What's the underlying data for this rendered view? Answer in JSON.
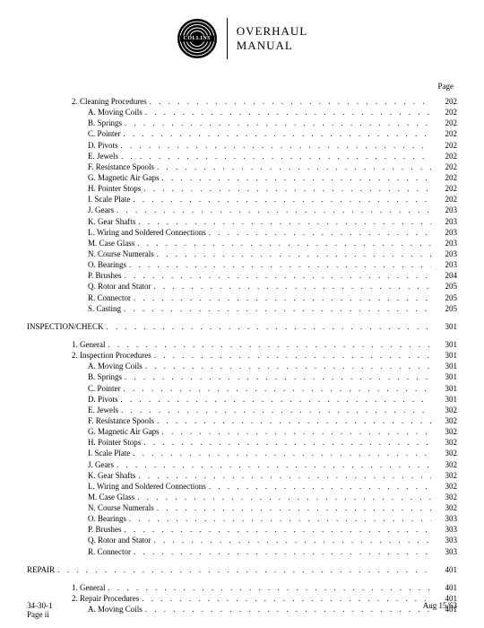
{
  "doc": {
    "logo_text": "COLLINS",
    "title_line1": "OVERHAUL",
    "title_line2": "MANUAL",
    "page_label": "Page",
    "footer_code": "34-30-1",
    "footer_page": "Page ii",
    "footer_date": "Aug 15/63",
    "colors": {
      "text": "#000000",
      "bg": "#ffffff"
    },
    "fonts": {
      "body_pt": 9,
      "title_pt": 13
    }
  },
  "toc": [
    {
      "level": "num",
      "text": "2. Cleaning Procedures",
      "page": "202"
    },
    {
      "level": "let",
      "text": "A.  Moving Coils",
      "page": "202"
    },
    {
      "level": "let",
      "text": "B.  Springs",
      "page": "202"
    },
    {
      "level": "let",
      "text": "C.  Pointer",
      "page": "202"
    },
    {
      "level": "let",
      "text": "D.  Pivots",
      "page": "202"
    },
    {
      "level": "let",
      "text": "E.  Jewels",
      "page": "202"
    },
    {
      "level": "let",
      "text": "F.  Resistance Spools",
      "page": "202"
    },
    {
      "level": "let",
      "text": "G.  Magnetic Air Gaps",
      "page": "202"
    },
    {
      "level": "let",
      "text": "H.  Pointer Stops",
      "page": "202"
    },
    {
      "level": "let",
      "text": "I.  Scale Plate",
      "page": "202"
    },
    {
      "level": "let",
      "text": "J.  Gears",
      "page": "203"
    },
    {
      "level": "let",
      "text": "K.  Gear Shafts",
      "page": "203"
    },
    {
      "level": "let",
      "text": "L.  Wiring and Soldered Connections",
      "page": "203"
    },
    {
      "level": "let",
      "text": "M.  Case Glass",
      "page": "203"
    },
    {
      "level": "let",
      "text": "N.  Course Numerals",
      "page": "203"
    },
    {
      "level": "let",
      "text": "O.  Bearings",
      "page": "203"
    },
    {
      "level": "let",
      "text": "P.  Brushes",
      "page": "204"
    },
    {
      "level": "let",
      "text": "Q.  Rotor and Stator",
      "page": "205"
    },
    {
      "level": "let",
      "text": "R.  Connector",
      "page": "205"
    },
    {
      "level": "let",
      "text": "S.  Casting",
      "page": "205"
    },
    {
      "level": "spacer"
    },
    {
      "level": "main",
      "text": "INSPECTION/CHECK",
      "page": "301"
    },
    {
      "level": "spacer"
    },
    {
      "level": "num",
      "text": "1. General",
      "page": "301"
    },
    {
      "level": "num",
      "text": "2. Inspection Procedures",
      "page": "301"
    },
    {
      "level": "let",
      "text": "A.  Moving Coils",
      "page": "301"
    },
    {
      "level": "let",
      "text": "B.  Springs",
      "page": "301"
    },
    {
      "level": "let",
      "text": "C.  Pointer",
      "page": "301"
    },
    {
      "level": "let",
      "text": "D.  Pivots",
      "page": "301"
    },
    {
      "level": "let",
      "text": "E.  Jewels",
      "page": "302"
    },
    {
      "level": "let",
      "text": "F.  Resistance Spools",
      "page": "302"
    },
    {
      "level": "let",
      "text": "G.  Magnetic Air Gaps",
      "page": "302"
    },
    {
      "level": "let",
      "text": "H.  Pointer Stops",
      "page": "302"
    },
    {
      "level": "let",
      "text": "I.  Scale Plate",
      "page": "302"
    },
    {
      "level": "let",
      "text": "J.  Gears",
      "page": "302"
    },
    {
      "level": "let",
      "text": "K.  Gear Shafts",
      "page": "302"
    },
    {
      "level": "let",
      "text": "L.  Wiring and Soldered Connections",
      "page": "302"
    },
    {
      "level": "let",
      "text": "M.  Case Glass",
      "page": "302"
    },
    {
      "level": "let",
      "text": "N.  Course Numerals",
      "page": "302"
    },
    {
      "level": "let",
      "text": "O.  Bearings",
      "page": "303"
    },
    {
      "level": "let",
      "text": "P.  Brushes",
      "page": "303"
    },
    {
      "level": "let",
      "text": "Q.  Rotor and Stator",
      "page": "303"
    },
    {
      "level": "let",
      "text": "R.  Connector",
      "page": "303"
    },
    {
      "level": "spacer"
    },
    {
      "level": "main",
      "text": "REPAIR",
      "page": "401"
    },
    {
      "level": "spacer"
    },
    {
      "level": "num",
      "text": "1. General",
      "page": "401"
    },
    {
      "level": "num",
      "text": "2. Repair Procedures",
      "page": "401"
    },
    {
      "level": "let",
      "text": "A.  Moving Coils",
      "page": "401"
    }
  ]
}
